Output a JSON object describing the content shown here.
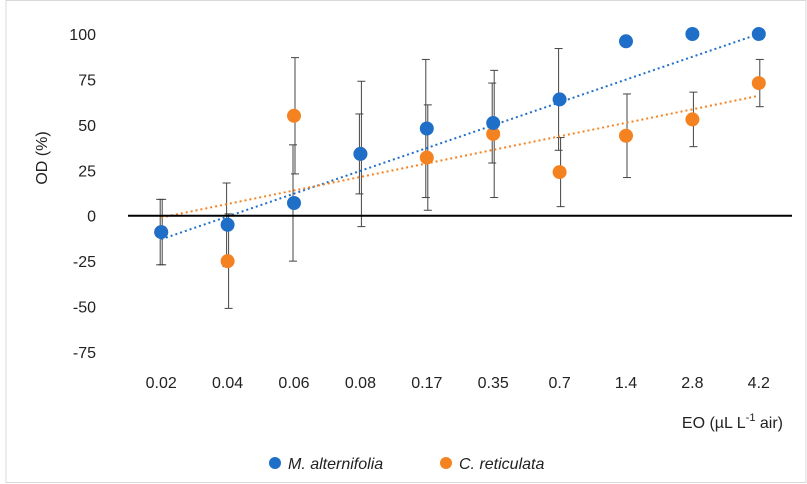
{
  "chart_data": {
    "type": "scatter",
    "title": "",
    "ylabel": "OD (%)",
    "xlabel": {
      "prefix": "EO (µL L",
      "superscript": "-1",
      "suffix": " air)"
    },
    "categories": [
      "0.02",
      "0.04",
      "0.06",
      "0.08",
      "0.17",
      "0.35",
      "0.7",
      "1.4",
      "2.8",
      "4.2"
    ],
    "ylim": [
      -75,
      100
    ],
    "yticks": [
      100,
      75,
      50,
      25,
      0,
      -25,
      -50,
      -75
    ],
    "ytick_labels": [
      "100",
      "75",
      "50",
      "25",
      "0",
      "-25",
      "-50",
      "-75"
    ],
    "grid": false,
    "legend_position": "bottom",
    "series": [
      {
        "name": "M. alternifolia",
        "color": "#1f6fc8",
        "values": [
          -9,
          -5,
          7,
          34,
          48,
          51,
          64,
          96,
          100,
          100
        ],
        "error": [
          18,
          23,
          32,
          22,
          38,
          22,
          28,
          null,
          null,
          null
        ],
        "trendline": [
          -13,
          100
        ]
      },
      {
        "name": "C. reticulata",
        "color": "#f58220",
        "values": [
          -9,
          -25,
          55,
          34,
          32,
          45,
          24,
          44,
          53,
          73
        ],
        "error": [
          18,
          26,
          32,
          40,
          29,
          35,
          19,
          23,
          15,
          13
        ],
        "trendline": [
          -1,
          66
        ]
      }
    ]
  }
}
